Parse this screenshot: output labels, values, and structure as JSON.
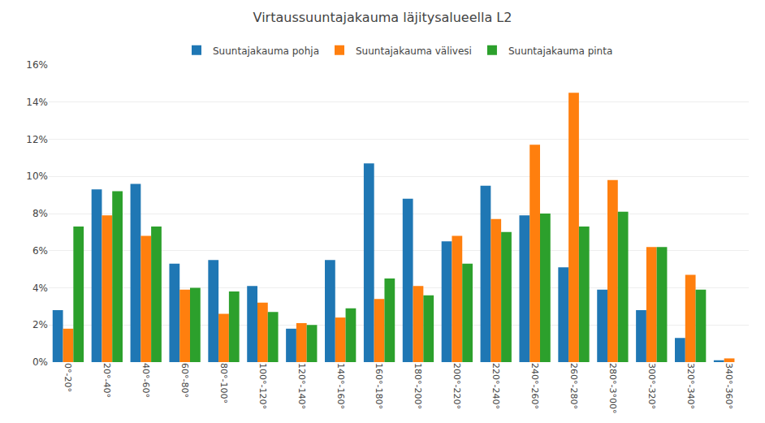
{
  "chart_data": {
    "type": "bar",
    "title": "Virtaussuuntajakauma läjitysalueella L2",
    "categories": [
      "0°-20°",
      "20°-40°",
      "40°-60°",
      "60°-80°",
      "80°-100°",
      "100°-120°",
      "120°-140°",
      "140°-160°",
      "160°-180°",
      "180°-200°",
      "200°-220°",
      "220°-240°",
      "240°-260°",
      "260°-280°",
      "280°-3°00°",
      "300°-320°",
      "320°-340°",
      "340°-360°"
    ],
    "series": [
      {
        "name": "Suuntajakauma pohja",
        "values": [
          0.028,
          0.093,
          0.096,
          0.053,
          0.055,
          0.041,
          0.018,
          0.055,
          0.107,
          0.088,
          0.065,
          0.095,
          0.079,
          0.051,
          0.039,
          0.028,
          0.013,
          0.001
        ]
      },
      {
        "name": "Suuntajakauma välivesi",
        "values": [
          0.018,
          0.079,
          0.068,
          0.039,
          0.026,
          0.032,
          0.021,
          0.024,
          0.034,
          0.041,
          0.068,
          0.077,
          0.117,
          0.145,
          0.098,
          0.062,
          0.047,
          0.002
        ]
      },
      {
        "name": "Suuntajakauma pinta",
        "values": [
          0.073,
          0.092,
          0.073,
          0.04,
          0.038,
          0.027,
          0.02,
          0.029,
          0.045,
          0.036,
          0.053,
          0.07,
          0.08,
          0.073,
          0.081,
          0.062,
          0.039,
          0.0
        ]
      }
    ],
    "ylim": [
      0,
      0.16
    ],
    "yticks": [
      {
        "value": 0.0,
        "label": "0%"
      },
      {
        "value": 0.02,
        "label": "2%"
      },
      {
        "value": 0.04,
        "label": "4%"
      },
      {
        "value": 0.06,
        "label": "6%"
      },
      {
        "value": 0.08,
        "label": "8%"
      },
      {
        "value": 0.1,
        "label": "10%"
      },
      {
        "value": 0.12,
        "label": "12%"
      },
      {
        "value": 0.14,
        "label": "14%"
      },
      {
        "value": 0.16,
        "label": "16%"
      }
    ],
    "grid": true,
    "legend": "top"
  }
}
